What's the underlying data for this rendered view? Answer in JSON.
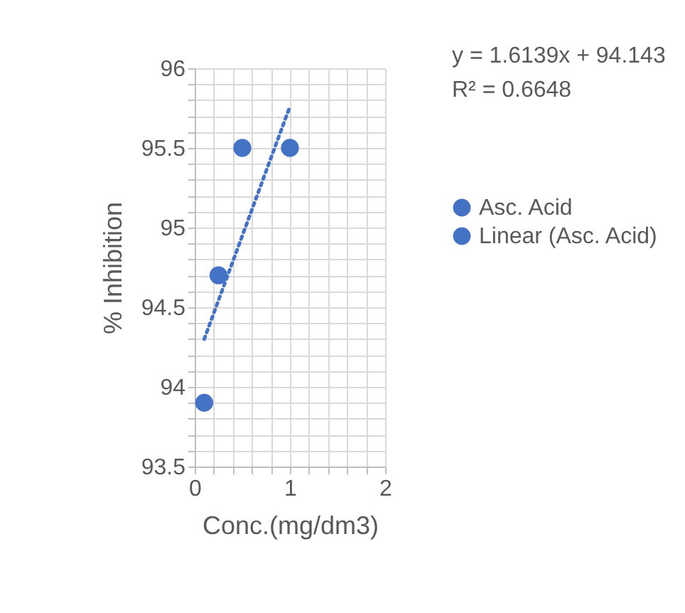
{
  "chart_data": {
    "type": "scatter",
    "xlabel": "Conc.(mg/dm3)",
    "ylabel": "% Inhibition",
    "annotations": [
      "y = 1.6139x + 94.143",
      "R² = 0.6648"
    ],
    "series": [
      {
        "name": "Asc. Acid",
        "type": "scatter",
        "color": "#4472c4",
        "x": [
          0.1,
          0.25,
          0.5,
          1
        ],
        "values": [
          93.9,
          94.7,
          95.5,
          95.5
        ],
        "marker": "circle"
      },
      {
        "name": "Linear (Asc. Acid)",
        "type": "line",
        "color": "#4472c4",
        "x": [
          0.1,
          1
        ],
        "values": [
          94.3,
          95.76
        ],
        "line_style": "dotted"
      }
    ],
    "xlim": [
      0,
      2
    ],
    "xticks": [
      0,
      {
        "value": 0.2,
        "label": null
      },
      {
        "value": 0.4,
        "label": null
      },
      {
        "value": 0.6,
        "label": null
      },
      {
        "value": 0.8,
        "label": null
      },
      1,
      {
        "value": 1.2,
        "label": null
      },
      {
        "value": 1.4,
        "label": null
      },
      {
        "value": 1.6,
        "label": null
      },
      {
        "value": 1.8,
        "label": null
      },
      2
    ],
    "ylim": [
      93.5,
      96
    ],
    "yticks": [
      93.5,
      {
        "value": 93.6,
        "label": null
      },
      {
        "value": 93.7,
        "label": null
      },
      {
        "value": 93.8,
        "label": null
      },
      {
        "value": 93.9,
        "label": null
      },
      94,
      {
        "value": 94.1,
        "label": null
      },
      {
        "value": 94.2,
        "label": null
      },
      {
        "value": 94.3,
        "label": null
      },
      {
        "value": 94.4,
        "label": null
      },
      94.5,
      {
        "value": 94.6,
        "label": null
      },
      {
        "value": 94.7,
        "label": null
      },
      {
        "value": 94.8,
        "label": null
      },
      {
        "value": 94.9,
        "label": null
      },
      95,
      {
        "value": 95.1,
        "label": null
      },
      {
        "value": 95.2,
        "label": null
      },
      {
        "value": 95.3,
        "label": null
      },
      {
        "value": 95.4,
        "label": null
      },
      95.5,
      {
        "value": 95.6,
        "label": null
      },
      {
        "value": 95.7,
        "label": null
      },
      {
        "value": 95.8,
        "label": null
      },
      {
        "value": 95.9,
        "label": null
      },
      96
    ],
    "grid": true,
    "legend": "right"
  }
}
